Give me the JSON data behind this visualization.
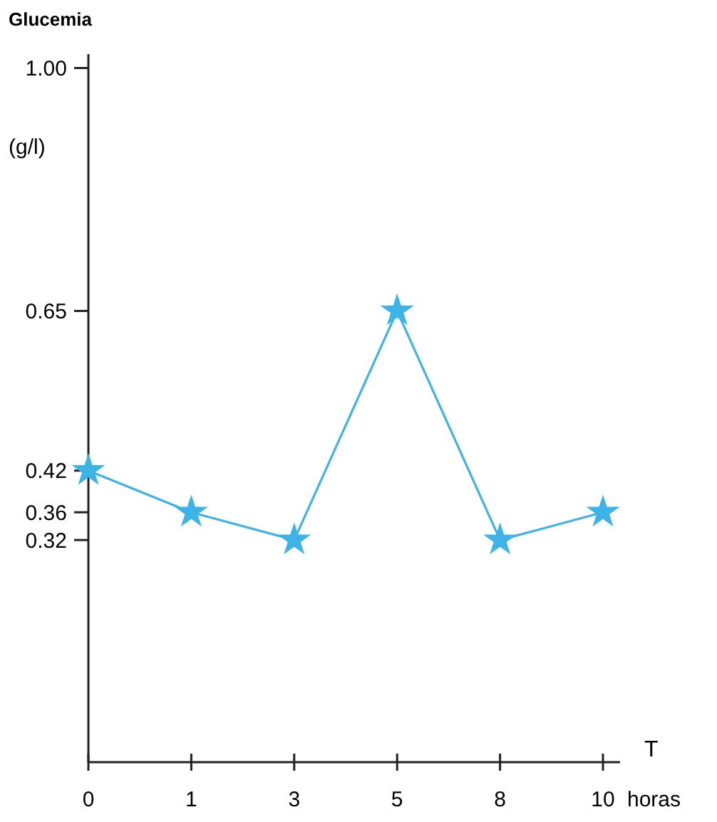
{
  "chart_data": {
    "type": "line",
    "title": "Glucemia",
    "ylabel": "(g/l)",
    "xlabel": "T",
    "annotations": [
      "horas"
    ],
    "categories": [
      "0",
      "1",
      "3",
      "5",
      "8",
      "10"
    ],
    "series": [
      {
        "color": "#3db4e8",
        "values": [
          0.42,
          0.36,
          0.32,
          0.65,
          0.32,
          0.36
        ]
      }
    ],
    "ylim": [
      0,
      1.02
    ],
    "yticks": [
      0.32,
      0.36,
      0.42,
      0.65,
      {
        "value": 1,
        "label": "1.00"
      }
    ],
    "marker": "star",
    "line_style": "solid"
  }
}
